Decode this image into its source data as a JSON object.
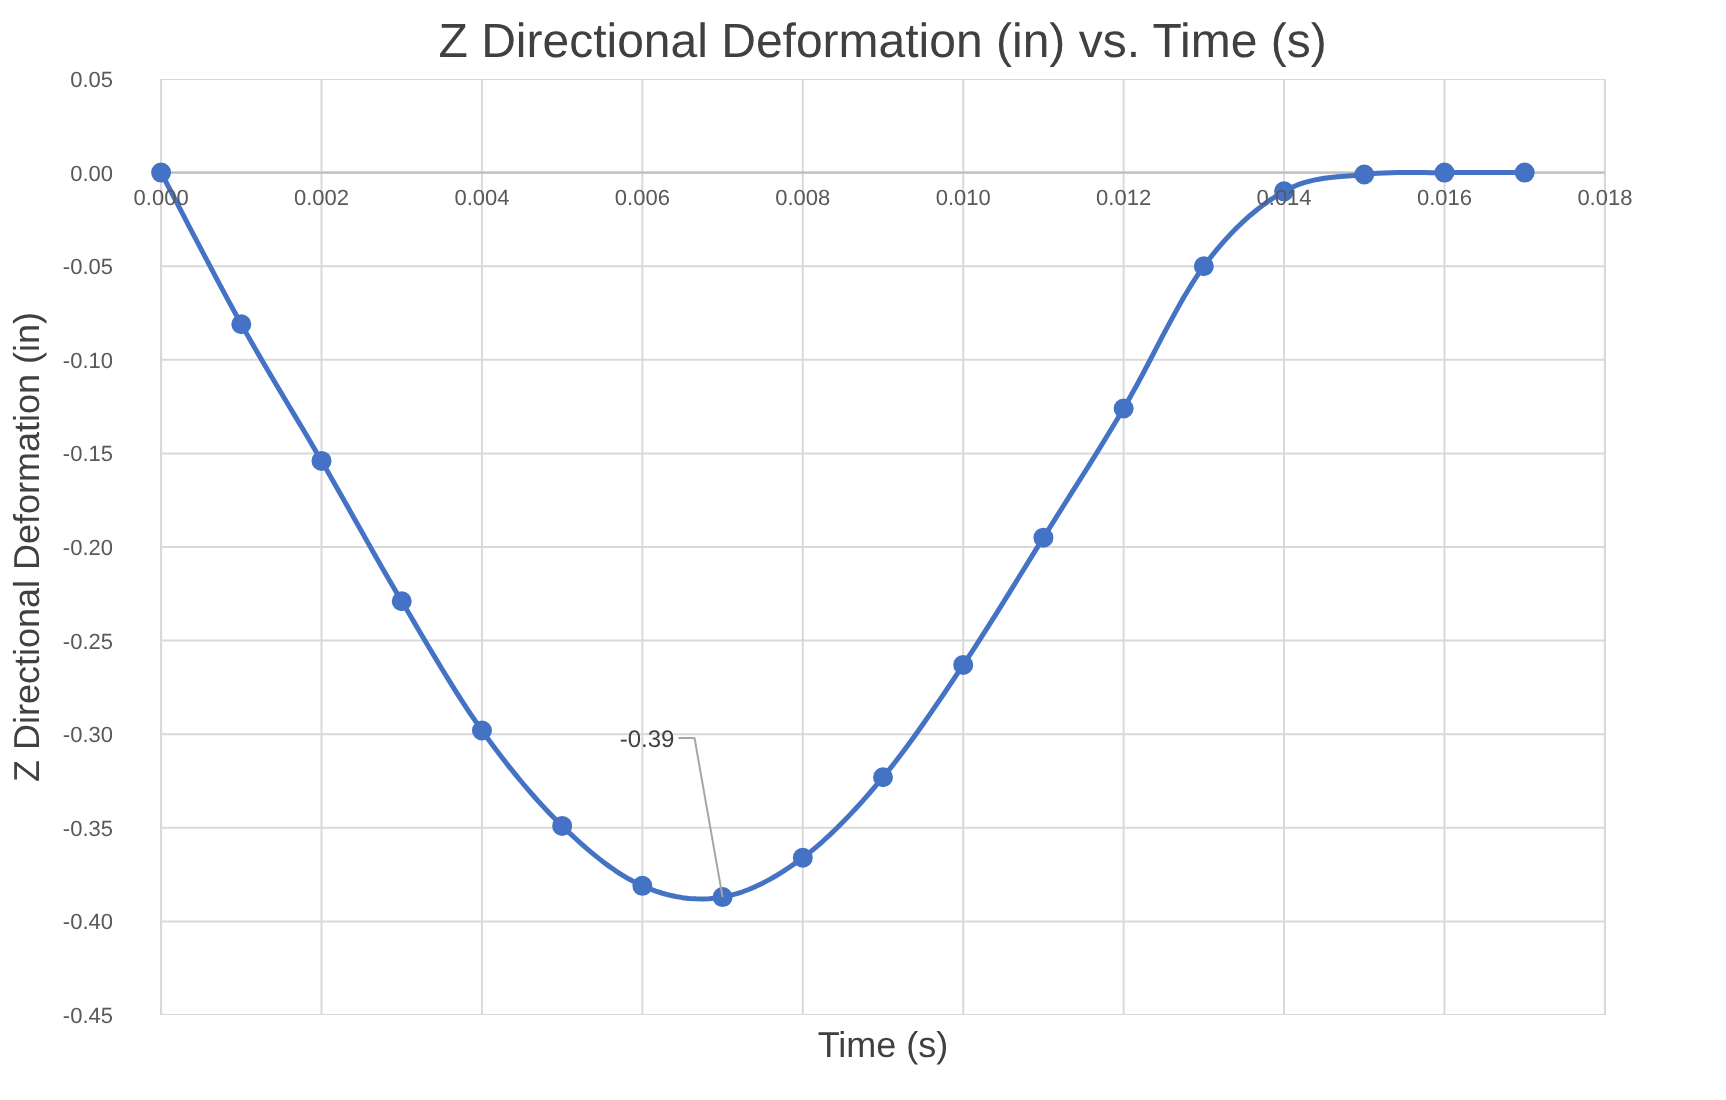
{
  "chart_data": {
    "type": "line",
    "title": "Z Directional Deformation (in) vs. Time (s)",
    "xlabel": "Time (s)",
    "ylabel": "Z Directional Deformation (in)",
    "x": [
      0,
      0.001,
      0.002,
      0.003,
      0.004,
      0.005,
      0.006,
      0.007,
      0.008,
      0.009,
      0.01,
      0.011,
      0.012,
      0.013,
      0.014,
      0.015,
      0.016,
      0.017
    ],
    "series": [
      {
        "color": "#4472c4",
        "values": [
          0,
          -0.081,
          -0.154,
          -0.229,
          -0.298,
          -0.349,
          -0.381,
          -0.387,
          -0.366,
          -0.323,
          -0.263,
          -0.195,
          -0.126,
          -0.05,
          -0.01,
          -0.001,
          0,
          0
        ],
        "value_labels": [
          null,
          null,
          null,
          null,
          null,
          null,
          null,
          "-0.39",
          null,
          null,
          null,
          null,
          null,
          null,
          null,
          null,
          null,
          null
        ]
      }
    ],
    "xlim": [
      0,
      0.018
    ],
    "xticks": [
      {
        "value": 0,
        "label": "0.000"
      },
      {
        "value": 0.002,
        "label": "0.002"
      },
      {
        "value": 0.004,
        "label": "0.004"
      },
      {
        "value": 0.006,
        "label": "0.006"
      },
      {
        "value": 0.008,
        "label": "0.008"
      },
      {
        "value": 0.01,
        "label": "0.010"
      },
      {
        "value": 0.012,
        "label": "0.012"
      },
      {
        "value": 0.014,
        "label": "0.014"
      },
      {
        "value": 0.016,
        "label": "0.016"
      },
      {
        "value": 0.018,
        "label": "0.018"
      }
    ],
    "ylim": [
      -0.45,
      0.05
    ],
    "yticks": [
      {
        "value": 0.05,
        "label": "0.05"
      },
      {
        "value": 0,
        "label": "0.00"
      },
      {
        "value": -0.05,
        "label": "-0.05"
      },
      {
        "value": -0.1,
        "label": "-0.10"
      },
      {
        "value": -0.15,
        "label": "-0.15"
      },
      {
        "value": -0.2,
        "label": "-0.20"
      },
      {
        "value": -0.25,
        "label": "-0.25"
      },
      {
        "value": -0.3,
        "label": "-0.30"
      },
      {
        "value": -0.35,
        "label": "-0.35"
      },
      {
        "value": -0.4,
        "label": "-0.40"
      },
      {
        "value": -0.45,
        "label": "-0.45"
      }
    ],
    "grid": true,
    "marker": "circle",
    "line_style": "solid"
  }
}
